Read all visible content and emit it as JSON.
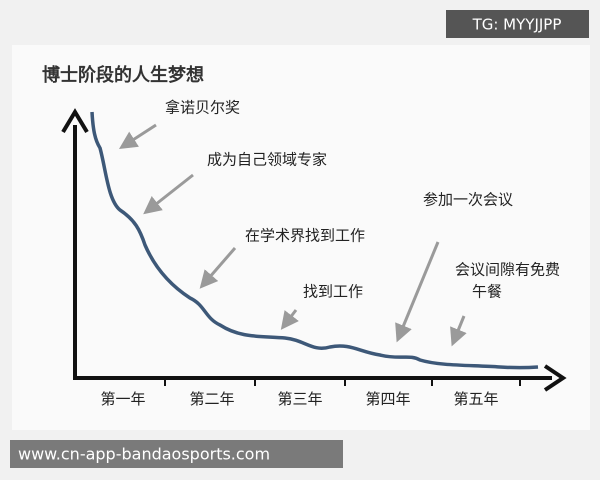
{
  "title": "博士阶段的人生梦想",
  "annotations": [
    "拿诺贝尔奖",
    "成为自己领域专家",
    "在学术界找到工作",
    "找到工作",
    "参加一次会议",
    [
      "会议间隙有免费",
      "午餐"
    ]
  ],
  "x_labels": [
    "第一年",
    "第二年",
    "第三年",
    "第四年",
    "第五年"
  ],
  "watermarks": {
    "top": "TG: MYYJJPP",
    "bottom": "www.cn-app-bandaosports.com"
  }
}
